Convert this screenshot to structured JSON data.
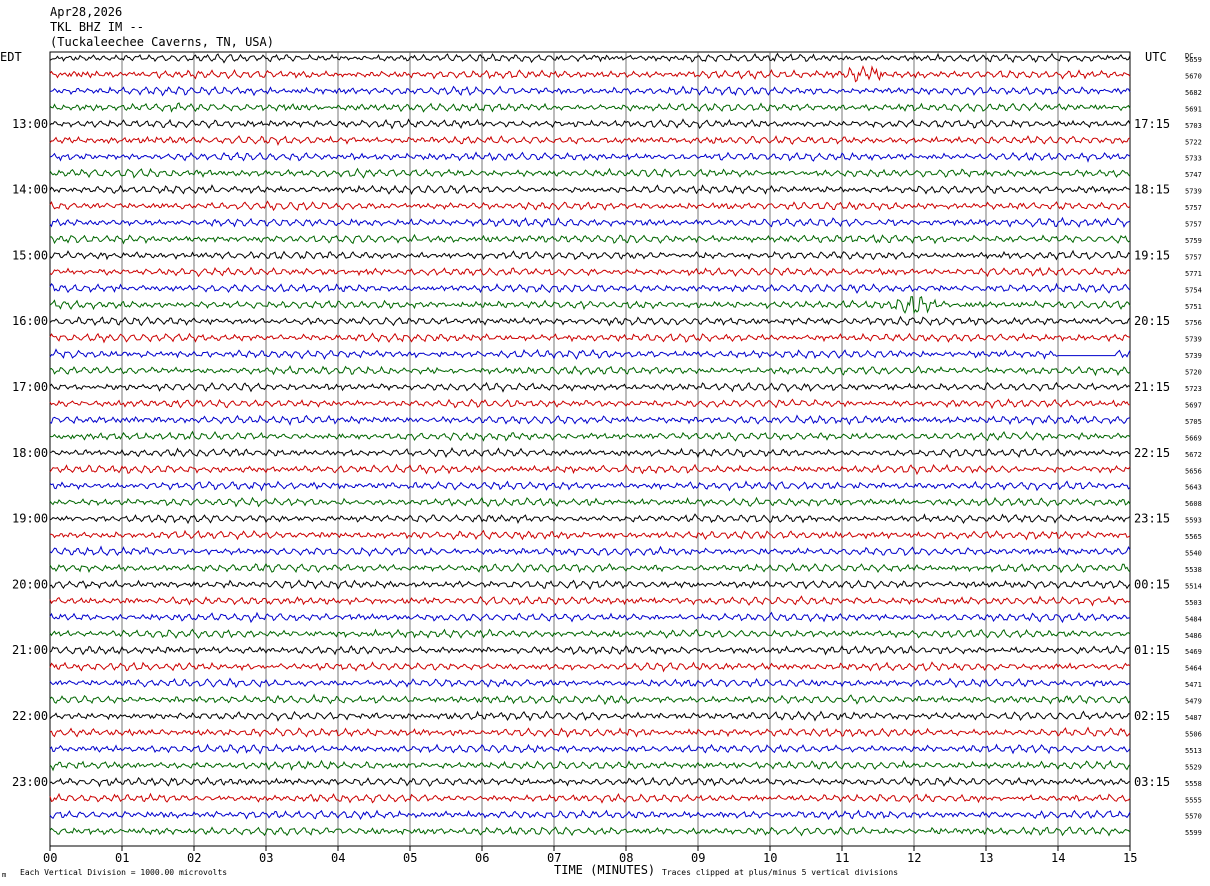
{
  "header": {
    "date": "Apr28,2026",
    "station": "TKL BHZ IM --",
    "location": "(Tuckaleechee Caverns, TN, USA)"
  },
  "labels": {
    "left_tz": "EDT",
    "right_tz": "UTC",
    "dc_label": "DC",
    "xlabel": "TIME (MINUTES)",
    "scale_note": "Each Vertical Division = 1000.00 microvolts",
    "clip_note": "Traces clipped at plus/minus 5 vertical divisions",
    "corner_mark": "m"
  },
  "chart_data": {
    "type": "line",
    "xlabel": "TIME (MINUTES)",
    "xlim": [
      0,
      15
    ],
    "x_ticks": [
      "00",
      "01",
      "02",
      "03",
      "04",
      "05",
      "06",
      "07",
      "08",
      "09",
      "10",
      "11",
      "12",
      "13",
      "14",
      "15"
    ],
    "trace_colors": [
      "#000000",
      "#cc0000",
      "#0000cc",
      "#006600"
    ],
    "left_hour_labels": [
      "13:00",
      "14:00",
      "15:00",
      "16:00",
      "17:00",
      "18:00",
      "19:00",
      "20:00",
      "21:00",
      "22:00",
      "23:00"
    ],
    "right_hour_labels": [
      "17:15",
      "18:15",
      "19:15",
      "20:15",
      "21:15",
      "22:15",
      "23:15",
      "00:15",
      "01:15",
      "02:15",
      "03:15"
    ],
    "dc_values": [
      "5659",
      "5670",
      "5682",
      "5691",
      "5703",
      "5722",
      "5733",
      "5747",
      "5739",
      "5757",
      "5757",
      "5759",
      "5757",
      "5771",
      "5754",
      "5751",
      "5756",
      "5739",
      "5739",
      "5720",
      "5723",
      "5697",
      "5705",
      "5669",
      "5672",
      "5656",
      "5643",
      "5608",
      "5593",
      "5565",
      "5540",
      "5538",
      "5514",
      "5503",
      "5484",
      "5486",
      "5469",
      "5464",
      "5471",
      "5479",
      "5487",
      "5506",
      "5513",
      "5529",
      "5558",
      "5555",
      "5570",
      "5599"
    ],
    "events": [
      {
        "row": 1,
        "minute": 11.3,
        "description": "burst"
      },
      {
        "row": 15,
        "minute": 12.0,
        "description": "burst"
      }
    ],
    "flat_segment": {
      "row": 18,
      "start_minute": 14.0,
      "end_minute": 14.8
    }
  }
}
